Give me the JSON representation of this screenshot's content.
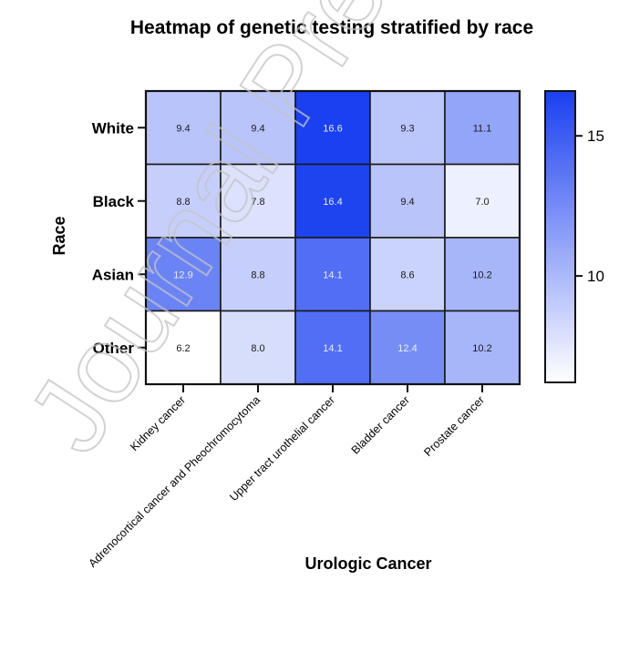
{
  "chart_data": {
    "type": "heatmap",
    "title": "Heatmap of genetic testing stratified by race",
    "xlabel": "Urologic Cancer",
    "ylabel": "Race",
    "rows": [
      "White",
      "Black",
      "Asian",
      "Other"
    ],
    "columns": [
      "Kidney cancer",
      "Adrenocortical cancer and Pheochromocytoma",
      "Upper tract urothelial cancer",
      "Bladder cancer",
      "Prostate cancer"
    ],
    "values": [
      [
        9.4,
        9.4,
        16.6,
        9.3,
        11.1
      ],
      [
        8.8,
        7.8,
        16.4,
        9.4,
        7.0
      ],
      [
        12.9,
        8.8,
        14.1,
        8.6,
        10.2
      ],
      [
        6.2,
        8.0,
        14.1,
        12.4,
        10.2
      ]
    ],
    "value_labels": [
      [
        "9.4",
        "9.4",
        "16.6",
        "9.3",
        "11.1"
      ],
      [
        "8.8",
        "7.8",
        "16.4",
        "9.4",
        "7.0"
      ],
      [
        "12.9",
        "8.8",
        "14.1",
        "8.6",
        "10.2"
      ],
      [
        "6.2",
        "8.0",
        "14.1",
        "12.4",
        "10.2"
      ]
    ],
    "colorbar": {
      "min": 6.2,
      "max": 16.6,
      "ticks": [
        10,
        15
      ],
      "tick_labels": [
        "10",
        "15"
      ],
      "color_low": "#ffffff",
      "color_high": "#1a40f0"
    },
    "grid": false,
    "legend": "right"
  },
  "watermark": "Journal Pre-proof"
}
